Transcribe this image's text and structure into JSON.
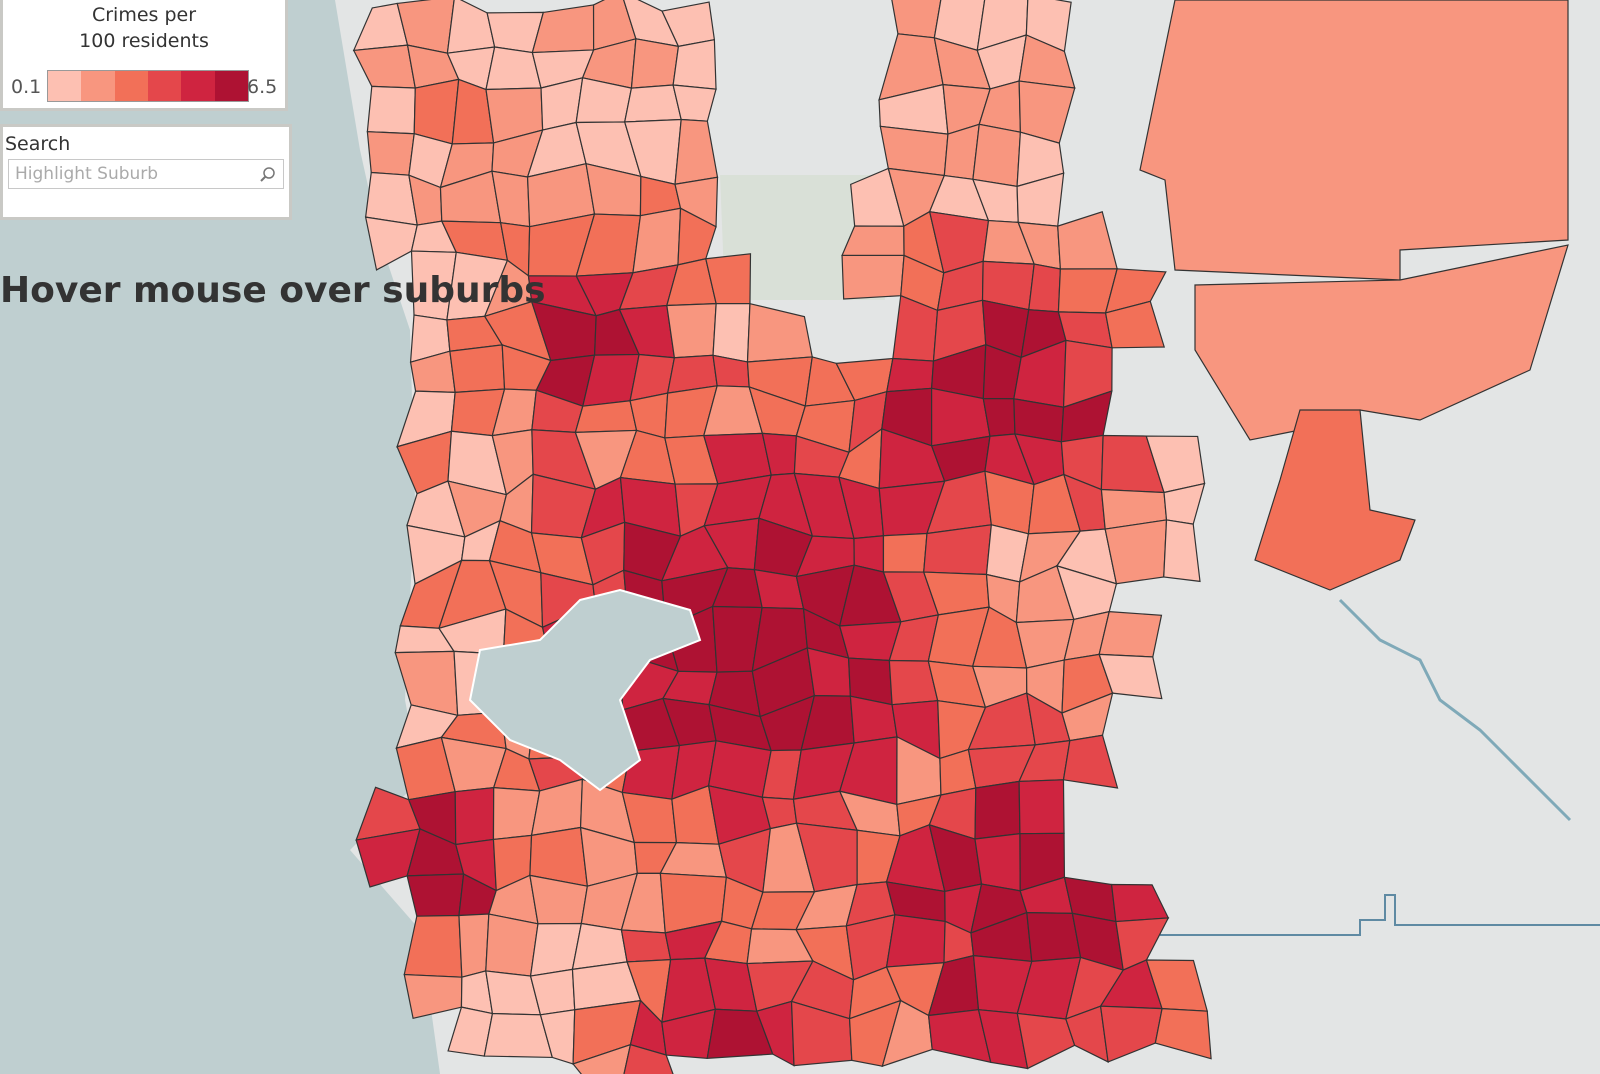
{
  "legend": {
    "title_line1": "Crimes per",
    "title_line2": "100 residents",
    "min": 0.1,
    "max": 6.5,
    "colors": [
      "#fdc0b2",
      "#f8967f",
      "#f27058",
      "#e4474b",
      "#cf2440",
      "#ae1233"
    ]
  },
  "search": {
    "label": "Search",
    "placeholder": "Highlight Suburb"
  },
  "instruction": "Hover mouse over suburbs"
}
